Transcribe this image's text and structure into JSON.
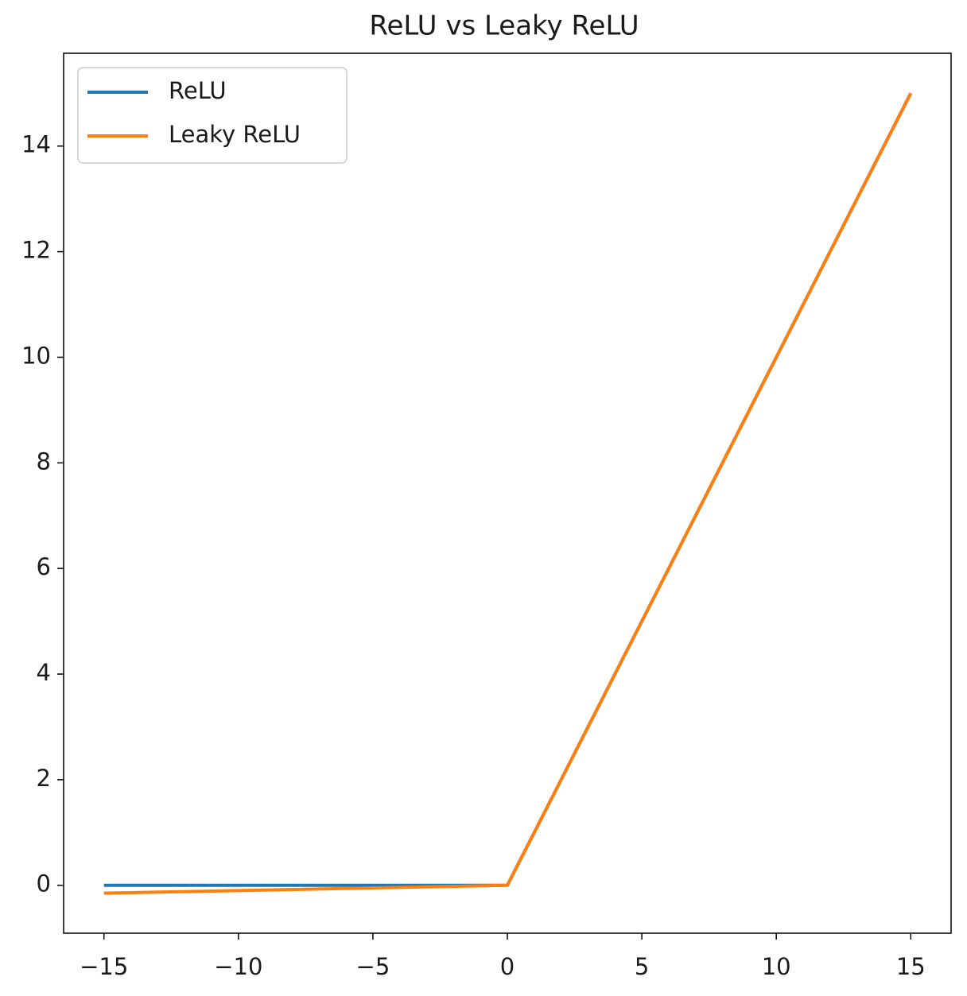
{
  "chart_data": {
    "type": "line",
    "title": "ReLU vs Leaky ReLU",
    "x": [
      -15,
      0,
      15
    ],
    "series": [
      {
        "name": "ReLU",
        "color": "#1f77b4",
        "values": [
          0,
          0,
          15
        ]
      },
      {
        "name": "Leaky ReLU",
        "color": "#ff7f0e",
        "values": [
          -0.15,
          0,
          15
        ]
      }
    ],
    "xlim": [
      -16.5,
      16.5
    ],
    "ylim": [
      -0.9075,
      15.7575
    ],
    "xticks": [
      {
        "value": -15,
        "label": "−15"
      },
      {
        "value": -10,
        "label": "−10"
      },
      {
        "value": -5,
        "label": "−5"
      },
      0,
      5,
      10,
      15
    ],
    "yticks": [
      0,
      2,
      4,
      6,
      8,
      10,
      12,
      14
    ],
    "legend": "upper left"
  }
}
